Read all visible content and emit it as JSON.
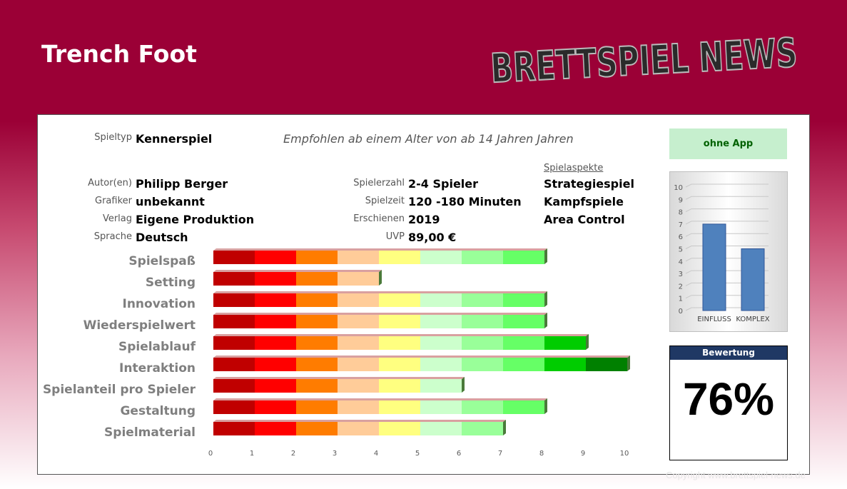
{
  "game_title": "Trench Foot",
  "logo_text": "BRETTSPIEL NEWS",
  "info": {
    "spieltyp_label": "Spieltyp",
    "spieltyp": "Kennerspiel",
    "recommendation": "Empfohlen ab einem Alter von ab 14 Jahren Jahren",
    "autor_label": "Autor(en)",
    "autor": "Philipp Berger",
    "grafiker_label": "Grafiker",
    "grafiker": "unbekannt",
    "verlag_label": "Verlag",
    "verlag": "Eigene Produktion",
    "sprache_label": "Sprache",
    "sprache": "Deutsch",
    "spielerzahl_label": "Spielerzahl",
    "spielerzahl": "2-4 Spieler",
    "spielzeit_label": "Spielzeit",
    "spielzeit": "120 -180 Minuten",
    "erschienen_label": "Erschienen",
    "erschienen": "2019",
    "uvp_label": "UVP",
    "uvp": "89,00 €",
    "aspects_label": "Spielaspekte",
    "aspects": [
      "Strategiespiel",
      "Kampfspiele",
      "Area Control"
    ]
  },
  "app_label": "ohne App",
  "rating": {
    "header": "Bewertung",
    "value": "76%"
  },
  "colors": {
    "segments": [
      "#c00000",
      "#ff0000",
      "#ff7c00",
      "#ffcc99",
      "#ffff80",
      "#ccffcc",
      "#99ff99",
      "#66ff66",
      "#00cc00",
      "#008000"
    ],
    "brand": "#9b0036",
    "mini_bar": "#4f81bd"
  },
  "chart_data": [
    {
      "type": "bar",
      "orientation": "horizontal",
      "categories": [
        "Spielspaß",
        "Setting",
        "Innovation",
        "Wiederspielwert",
        "Spielablauf",
        "Interaktion",
        "Spielanteil pro Spieler",
        "Gestaltung",
        "Spielmaterial"
      ],
      "values": [
        8,
        4,
        8,
        8,
        9,
        10,
        6,
        8,
        7
      ],
      "xlim": [
        0,
        10
      ],
      "xticks": [
        "0",
        "1",
        "2",
        "3",
        "4",
        "5",
        "6",
        "7",
        "8",
        "9",
        "10"
      ]
    },
    {
      "type": "bar",
      "categories": [
        "EINFLUSS",
        "KOMPLEX"
      ],
      "values": [
        7,
        5
      ],
      "ylim": [
        0,
        10
      ],
      "yticks": [
        "0",
        "1",
        "2",
        "3",
        "4",
        "5",
        "6",
        "7",
        "8",
        "9",
        "10"
      ]
    }
  ],
  "copyright": "Copyright www.brettspiel-news.de"
}
